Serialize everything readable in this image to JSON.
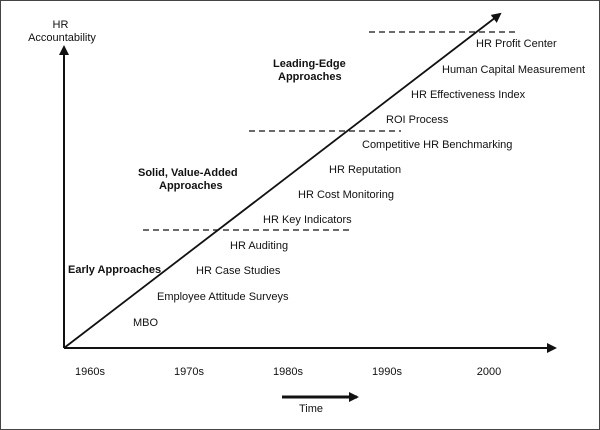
{
  "y_axis_label": [
    "HR",
    "Accountability"
  ],
  "x_axis_ticks": [
    "1960s",
    "1970s",
    "1980s",
    "1990s",
    "2000"
  ],
  "time_label": "Time",
  "phases": [
    {
      "title": [
        "Early Approaches"
      ]
    },
    {
      "title": [
        "Solid, Value-Added",
        "Approaches"
      ]
    },
    {
      "title": [
        "Leading-Edge",
        "Approaches"
      ]
    }
  ],
  "practices": [
    "MBO",
    "Employee Attitude Surveys",
    "HR Case Studies",
    "HR Auditing",
    "HR Key Indicators",
    "HR Cost Monitoring",
    "HR Reputation",
    "Competitive HR Benchmarking",
    "ROI Process",
    "HR Effectiveness Index",
    "Human Capital Measurement",
    "HR Profit Center"
  ],
  "colors": {
    "ink": "#111111",
    "background": "#ffffff"
  }
}
